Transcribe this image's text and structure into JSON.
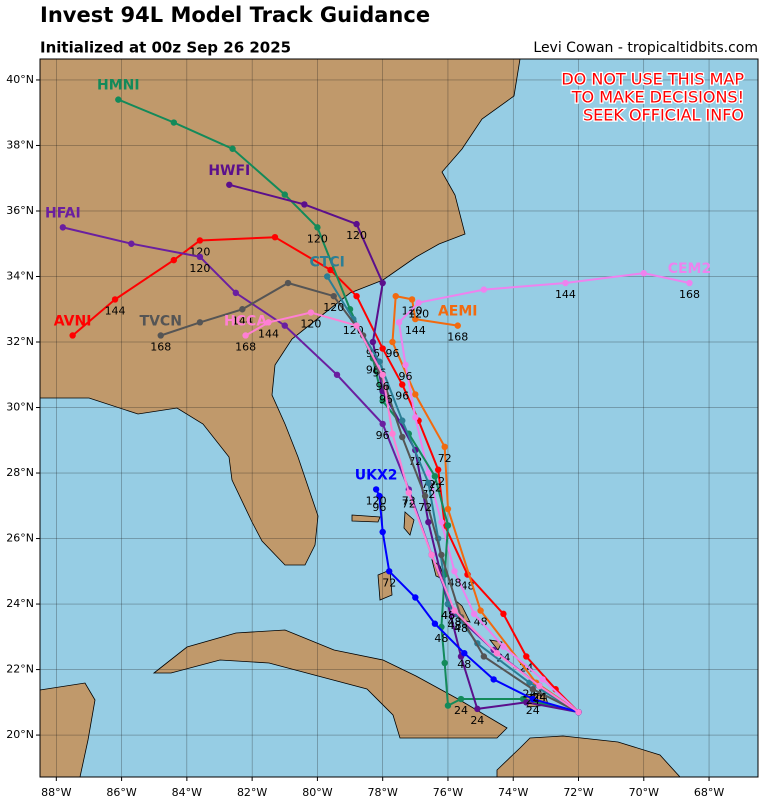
{
  "header": {
    "title": "Invest 94L Model Track Guidance",
    "subtitle": "Initialized at 00z Sep 26 2025",
    "credit": "Levi Cowan - tropicaltidbits.com"
  },
  "warning": [
    "DO NOT USE THIS MAP",
    "TO MAKE DECISIONS!",
    "SEEK OFFICIAL INFO"
  ],
  "map": {
    "lonlim": [
      -88.5,
      -66.5
    ],
    "latlim": [
      18.72,
      40.64
    ],
    "grid": true,
    "lonticks": [
      {
        "value": -88,
        "label": "88°W"
      },
      {
        "value": -86,
        "label": "86°W"
      },
      {
        "value": -84,
        "label": "84°W"
      },
      {
        "value": -82,
        "label": "82°W"
      },
      {
        "value": -80,
        "label": "80°W"
      },
      {
        "value": -78,
        "label": "78°W"
      },
      {
        "value": -76,
        "label": "76°W"
      },
      {
        "value": -74,
        "label": "74°W"
      },
      {
        "value": -72,
        "label": "72°W"
      },
      {
        "value": -70,
        "label": "70°W"
      },
      {
        "value": -68,
        "label": "68°W"
      }
    ],
    "latticks": [
      {
        "value": 20,
        "label": "20°N"
      },
      {
        "value": 22,
        "label": "22°N"
      },
      {
        "value": 24,
        "label": "24°N"
      },
      {
        "value": 26,
        "label": "26°N"
      },
      {
        "value": 28,
        "label": "28°N"
      },
      {
        "value": 30,
        "label": "30°N"
      },
      {
        "value": 32,
        "label": "32°N"
      },
      {
        "value": 34,
        "label": "34°N"
      },
      {
        "value": 36,
        "label": "36°N"
      },
      {
        "value": 38,
        "label": "38°N"
      },
      {
        "value": 40,
        "label": "40°N"
      }
    ],
    "tracks": [
      {
        "name": "AVNI",
        "color": "#ff0000",
        "lon": [
          -72,
          -72.7,
          -73.6,
          -74.3,
          -75.4,
          -76.1,
          -76.3,
          -76.9,
          -77.4,
          -78.0,
          -78.8,
          -79.6,
          -81.3,
          -83.6,
          -84.4,
          -86.2,
          -87.5
        ],
        "lat": [
          20.7,
          21.4,
          22.4,
          23.7,
          24.9,
          26.4,
          28.1,
          29.6,
          30.7,
          31.8,
          33.4,
          34.2,
          35.2,
          35.1,
          34.5,
          33.3,
          32.2
        ],
        "hour_labels": [
          null,
          null,
          24,
          null,
          48,
          null,
          72,
          null,
          96,
          null,
          null,
          null,
          null,
          120,
          null,
          144,
          null
        ]
      },
      {
        "name": "AEMI",
        "color": "#f26a0f",
        "lon": [
          -72,
          -73.3,
          -75.0,
          -76.0,
          -76.1,
          -77.0,
          -77.7,
          -77.6,
          -77.1,
          -77.0,
          -75.7
        ],
        "lat": [
          20.7,
          21.6,
          23.8,
          26.9,
          28.8,
          30.4,
          32.0,
          33.4,
          33.3,
          32.7,
          32.5
        ],
        "hour_labels": [
          null,
          24,
          48,
          null,
          72,
          null,
          96,
          null,
          120,
          144,
          168
        ]
      },
      {
        "name": "CEM2",
        "color": "#ee82ee",
        "lon": [
          -72,
          -73.1,
          -74.3,
          -75.2,
          -75.8,
          -76.2,
          -76.6,
          -77.0,
          -77.3,
          -77.5,
          -76.9,
          -74.9,
          -72.4,
          -70.0,
          -68.6
        ],
        "lat": [
          20.7,
          21.7,
          22.7,
          23.7,
          25.0,
          26.5,
          28.0,
          29.7,
          31.3,
          32.6,
          33.2,
          33.6,
          33.8,
          34.1,
          33.8
        ],
        "hour_labels": [
          null,
          null,
          24,
          null,
          48,
          null,
          72,
          null,
          96,
          null,
          120,
          null,
          144,
          null,
          168
        ]
      },
      {
        "name": "HMNI",
        "color": "#138a5a",
        "lon": [
          -72,
          -73.7,
          -75.6,
          -76.0,
          -76.1,
          -76.2,
          -76.1,
          -76.0,
          -76.4,
          -77.2,
          -78.0,
          -78.3,
          -79.0,
          -80.0,
          -81.0,
          -82.6,
          -84.4,
          -86.1
        ],
        "lat": [
          20.7,
          21.1,
          21.1,
          20.9,
          22.2,
          23.3,
          24.9,
          26.4,
          27.9,
          29.2,
          30.2,
          31.5,
          33.0,
          35.5,
          36.5,
          37.9,
          38.7,
          39.4
        ],
        "hour_labels": [
          null,
          null,
          24,
          null,
          null,
          48,
          null,
          null,
          72,
          null,
          null,
          96,
          null,
          120,
          null,
          null,
          null,
          null
        ]
      },
      {
        "name": "HWFI",
        "color": "#5b0f8c",
        "lon": [
          -72,
          -73.6,
          -75.1,
          -75.6,
          -76.0,
          -76.6,
          -77.0,
          -78.0,
          -78.3,
          -78.0,
          -78.8,
          -80.4,
          -82.7
        ],
        "lat": [
          20.7,
          21.0,
          20.8,
          22.4,
          24.0,
          26.5,
          28.7,
          30.5,
          32.0,
          33.8,
          35.6,
          36.2,
          36.8
        ],
        "hour_labels": [
          null,
          null,
          24,
          null,
          48,
          null,
          72,
          null,
          96,
          null,
          120,
          null,
          null
        ]
      },
      {
        "name": "HFAI",
        "color": "#6a1fa0",
        "lon": [
          -72,
          -73.2,
          -74.6,
          -75.8,
          -76.5,
          -77.2,
          -78.0,
          -79.4,
          -81.0,
          -82.5,
          -83.6,
          -85.7,
          -87.8
        ],
        "lat": [
          20.7,
          21.5,
          22.6,
          23.7,
          25.5,
          27.5,
          29.5,
          31.0,
          32.5,
          33.5,
          34.6,
          35.0,
          35.5
        ],
        "hour_labels": [
          null,
          24,
          null,
          48,
          null,
          72,
          96,
          null,
          null,
          null,
          120,
          null,
          null
        ]
      },
      {
        "name": "CTCI",
        "color": "#2b7e95",
        "lon": [
          -72,
          -73.5,
          -75.1,
          -76.0,
          -76.3,
          -76.6,
          -77.4,
          -78.1,
          -78.9,
          -79.7
        ],
        "lat": [
          20.7,
          21.6,
          22.8,
          24.0,
          26.0,
          27.7,
          29.6,
          31.4,
          32.7,
          34.0
        ],
        "hour_labels": [
          null,
          24,
          null,
          48,
          null,
          72,
          null,
          96,
          120,
          null
        ]
      },
      {
        "name": "TVCN",
        "color": "#555555",
        "lon": [
          -72,
          -73.4,
          -74.9,
          -75.6,
          -76.2,
          -76.7,
          -77.4,
          -77.9,
          -78.6,
          -79.5,
          -80.9,
          -82.3,
          -83.6,
          -84.8
        ],
        "lat": [
          20.7,
          21.4,
          22.4,
          23.6,
          25.5,
          27.3,
          29.1,
          30.6,
          32.2,
          33.4,
          33.8,
          33.0,
          32.6,
          32.2
        ],
        "hour_labels": [
          null,
          24,
          null,
          48,
          null,
          72,
          null,
          96,
          null,
          120,
          null,
          144,
          null,
          168
        ]
      },
      {
        "name": "UKX2",
        "color": "#0000ff",
        "lon": [
          -72,
          -73.4,
          -74.6,
          -75.5,
          -76.4,
          -77.0,
          -77.8,
          -78.0,
          -78.1,
          -78.2
        ],
        "lat": [
          20.7,
          21.1,
          21.7,
          22.5,
          23.4,
          24.2,
          25.0,
          26.2,
          27.3,
          27.5
        ],
        "hour_labels": [
          null,
          24,
          null,
          48,
          null,
          null,
          72,
          null,
          96,
          120
        ]
      },
      {
        "name": "HCCA",
        "color": "#ff7fd4",
        "lon": [
          -72,
          -73.2,
          -74.5,
          -75.8,
          -76.5,
          -77.2,
          -77.7,
          -78.0,
          -78.8,
          -80.2,
          -81.5,
          -82.2
        ],
        "lat": [
          20.7,
          21.5,
          22.5,
          23.8,
          25.5,
          27.4,
          29.2,
          31.0,
          32.5,
          32.9,
          32.6,
          32.2
        ],
        "hour_labels": [
          null,
          24,
          null,
          48,
          null,
          72,
          null,
          96,
          null,
          120,
          144,
          168
        ]
      }
    ]
  }
}
